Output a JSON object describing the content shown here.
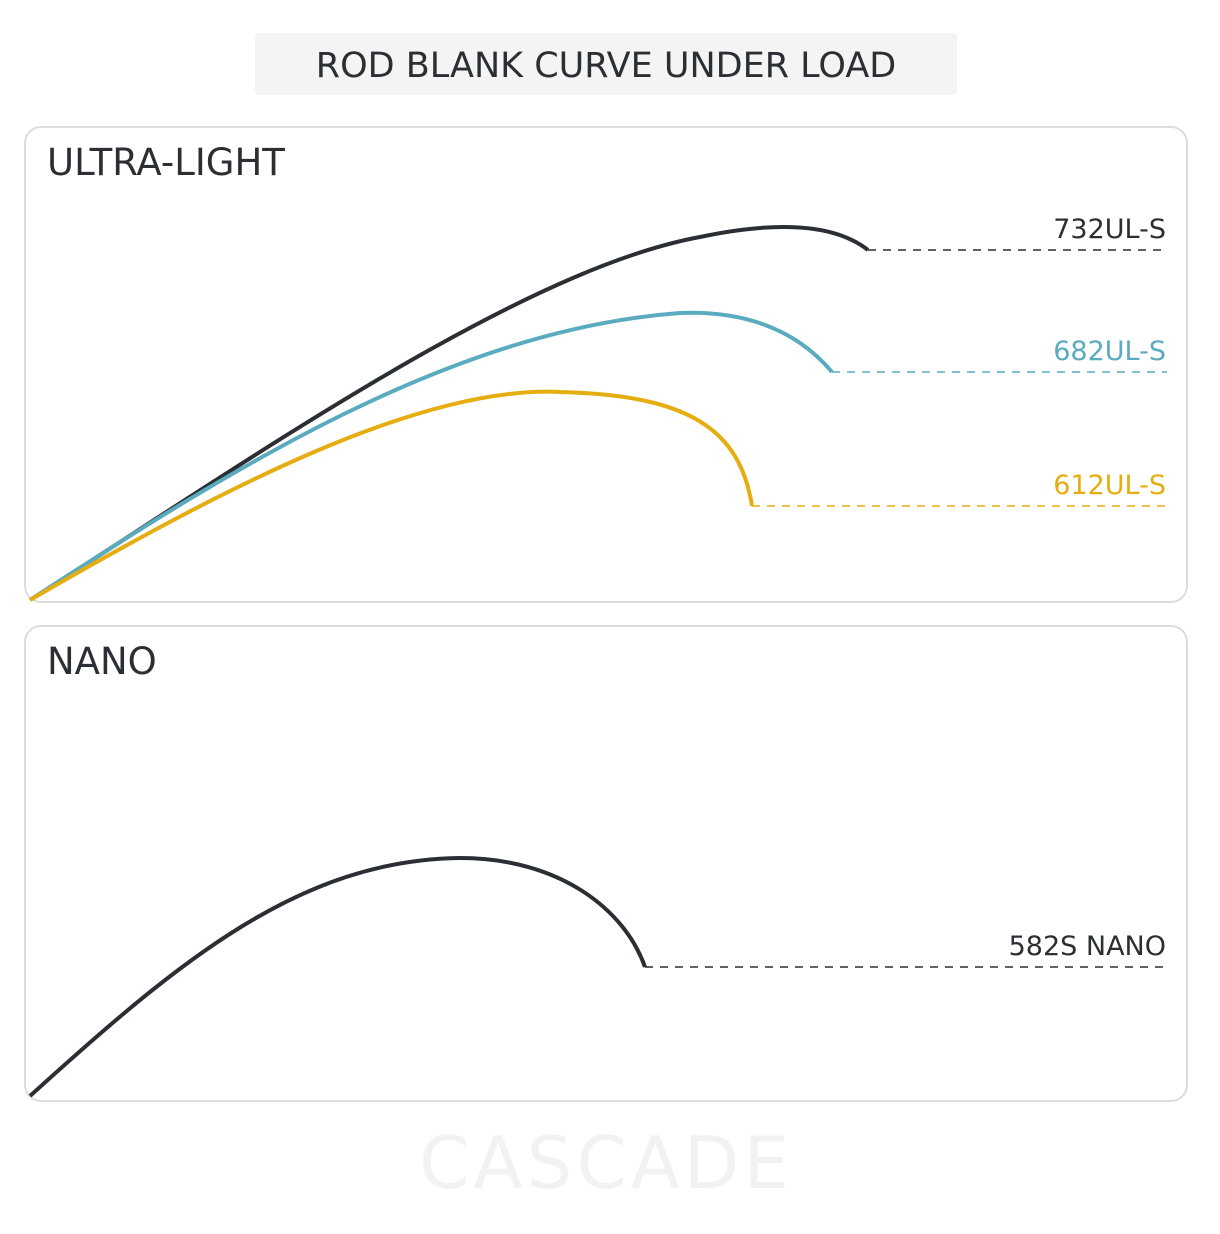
{
  "title": "ROD BLANK CURVE UNDER LOAD",
  "panels": [
    {
      "title": "ULTRA-LIGHT",
      "rods": [
        {
          "label": "732UL-S"
        },
        {
          "label": "682UL-S"
        },
        {
          "label": "612UL-S"
        }
      ]
    },
    {
      "title": "NANO",
      "rods": [
        {
          "label": "582S NANO"
        }
      ]
    }
  ],
  "watermark": "CASCADE"
}
